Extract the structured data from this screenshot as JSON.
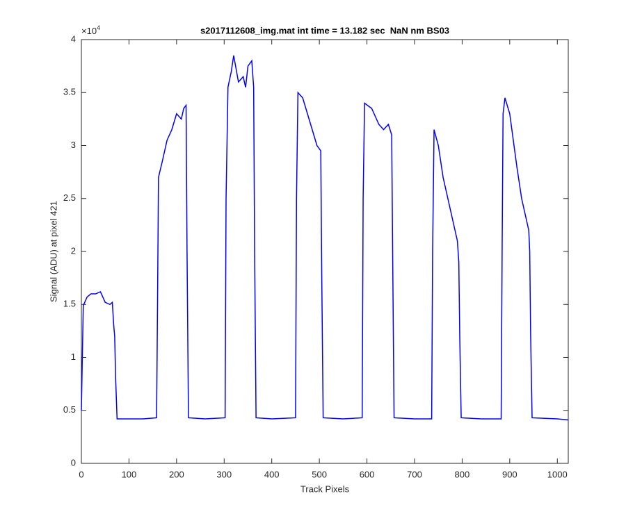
{
  "chart_data": {
    "type": "line",
    "title": "s2017112608_img.mat int time = 13.182 sec  NaN nm BS03",
    "x_label": "Track Pixels",
    "y_label": "Signal (ADU) at pixel 421",
    "y_scale_base": "×10",
    "y_scale_exponent": "4",
    "xlim": [
      0,
      1023
    ],
    "ylim": [
      0,
      4
    ],
    "xticks": [
      0,
      100,
      200,
      300,
      400,
      500,
      600,
      700,
      800,
      900,
      1000
    ],
    "yticks": [
      0,
      0.5,
      1,
      1.5,
      2,
      2.5,
      3,
      3.5,
      4
    ],
    "grid": false,
    "x": [
      0,
      4,
      12,
      20,
      30,
      40,
      50,
      60,
      65,
      68,
      70,
      72,
      75,
      100,
      130,
      158,
      160,
      162,
      170,
      180,
      190,
      200,
      210,
      215,
      220,
      222,
      225,
      260,
      302,
      304,
      308,
      315,
      320,
      330,
      340,
      345,
      350,
      358,
      362,
      364,
      367,
      400,
      450,
      452,
      455,
      465,
      475,
      485,
      495,
      503,
      505,
      508,
      550,
      590,
      592,
      595,
      610,
      625,
      635,
      645,
      652,
      654,
      657,
      700,
      736,
      738,
      741,
      750,
      760,
      770,
      780,
      790,
      793,
      795,
      798,
      840,
      882,
      884,
      886,
      890,
      900,
      915,
      925,
      935,
      940,
      942,
      944,
      947,
      1000,
      1023
    ],
    "series": [
      {
        "color": "#0000ff",
        "values": [
          0.5,
          1.49,
          1.57,
          1.6,
          1.6,
          1.62,
          1.52,
          1.5,
          1.52,
          1.3,
          1.2,
          0.8,
          0.42,
          0.42,
          0.42,
          0.43,
          1.5,
          2.7,
          2.85,
          3.05,
          3.15,
          3.3,
          3.25,
          3.35,
          3.38,
          2.0,
          0.43,
          0.42,
          0.43,
          2.5,
          3.55,
          3.7,
          3.85,
          3.6,
          3.65,
          3.55,
          3.75,
          3.8,
          3.55,
          2.0,
          0.43,
          0.42,
          0.43,
          2.5,
          3.5,
          3.45,
          3.3,
          3.15,
          3.0,
          2.95,
          1.8,
          0.43,
          0.42,
          0.43,
          2.5,
          3.4,
          3.35,
          3.2,
          3.15,
          3.2,
          3.1,
          2.0,
          0.43,
          0.42,
          0.42,
          2.0,
          3.15,
          3.0,
          2.7,
          2.5,
          2.3,
          2.1,
          1.9,
          1.2,
          0.43,
          0.42,
          0.42,
          2.0,
          3.3,
          3.45,
          3.3,
          2.8,
          2.5,
          2.3,
          2.2,
          2.0,
          1.2,
          0.43,
          0.42,
          0.41
        ]
      }
    ]
  }
}
